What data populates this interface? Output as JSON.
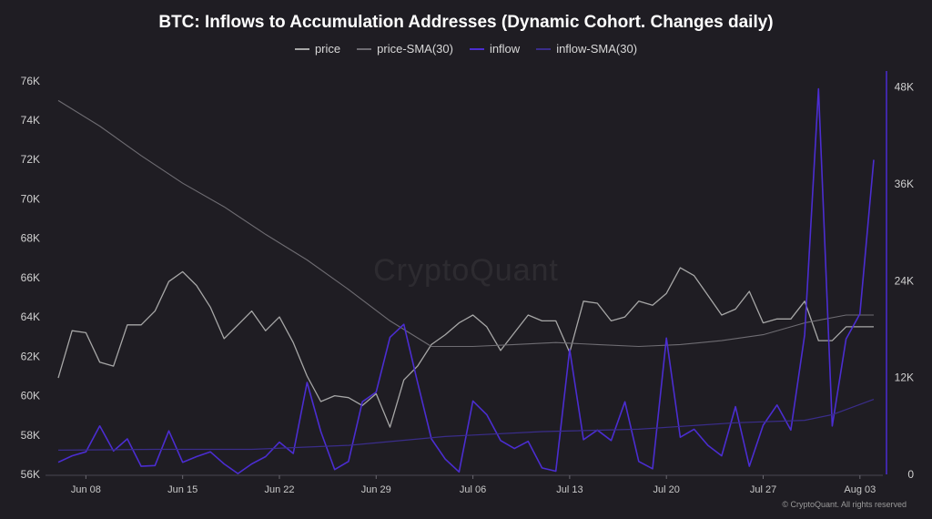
{
  "chart_data": {
    "type": "line",
    "title": "BTC: Inflows to Accumulation Addresses (Dynamic Cohort. Changes daily)",
    "legend_position": "top-center",
    "x_ticks": [
      "Jun 08",
      "Jun 15",
      "Jun 22",
      "Jun 29",
      "Jul 06",
      "Jul 13",
      "Jul 20",
      "Jul 27",
      "Aug 03"
    ],
    "x_range": [
      "2024-06-06",
      "2024-08-04"
    ],
    "y_left": {
      "ticks": [
        56000,
        58000,
        60000,
        62000,
        64000,
        66000,
        68000,
        70000,
        72000,
        74000,
        76000
      ],
      "tick_labels": [
        "56K",
        "58K",
        "60K",
        "62K",
        "64K",
        "66K",
        "68K",
        "70K",
        "72K",
        "74K",
        "76K"
      ],
      "range": [
        56000,
        76500
      ]
    },
    "y_right": {
      "ticks": [
        0,
        12000,
        24000,
        36000,
        48000
      ],
      "tick_labels": [
        "0",
        "12K",
        "24K",
        "36K",
        "48K"
      ],
      "range": [
        0,
        50000
      ]
    },
    "series": [
      {
        "name": "price",
        "axis": "left",
        "color": "#a7a7a7",
        "x": [
          "2024-06-06",
          "2024-06-07",
          "2024-06-08",
          "2024-06-09",
          "2024-06-10",
          "2024-06-11",
          "2024-06-12",
          "2024-06-13",
          "2024-06-14",
          "2024-06-15",
          "2024-06-16",
          "2024-06-17",
          "2024-06-18",
          "2024-06-19",
          "2024-06-20",
          "2024-06-21",
          "2024-06-22",
          "2024-06-23",
          "2024-06-24",
          "2024-06-25",
          "2024-06-26",
          "2024-06-27",
          "2024-06-28",
          "2024-06-29",
          "2024-06-30",
          "2024-07-01",
          "2024-07-02",
          "2024-07-03",
          "2024-07-04",
          "2024-07-05",
          "2024-07-06",
          "2024-07-07",
          "2024-07-08",
          "2024-07-09",
          "2024-07-10",
          "2024-07-11",
          "2024-07-12",
          "2024-07-13",
          "2024-07-14",
          "2024-07-15",
          "2024-07-16",
          "2024-07-17",
          "2024-07-18",
          "2024-07-19",
          "2024-07-20",
          "2024-07-21",
          "2024-07-22",
          "2024-07-23",
          "2024-07-24",
          "2024-07-25",
          "2024-07-26",
          "2024-07-27",
          "2024-07-28",
          "2024-07-29",
          "2024-07-30",
          "2024-07-31",
          "2024-08-01",
          "2024-08-02",
          "2024-08-03",
          "2024-08-04"
        ],
        "values": [
          60900,
          63300,
          63200,
          61700,
          61500,
          63600,
          63600,
          64300,
          65800,
          66300,
          65600,
          64500,
          62900,
          63600,
          64300,
          63300,
          64000,
          62700,
          61000,
          59700,
          60000,
          59900,
          59500,
          60100,
          58400,
          60800,
          61500,
          62600,
          63100,
          63700,
          64100,
          63500,
          62300,
          63200,
          64100,
          63800,
          63800,
          62200,
          64800,
          64700,
          63800,
          64000,
          64800,
          64600,
          65200,
          66500,
          66100,
          65100,
          64100,
          64400,
          65300,
          63700,
          63900,
          63900,
          64800,
          62800,
          62800,
          63500,
          63500,
          63500
        ]
      },
      {
        "name": "price-SMA(30)",
        "axis": "left",
        "color": "#6e6c72",
        "x": [
          "2024-06-06",
          "2024-06-09",
          "2024-06-12",
          "2024-06-15",
          "2024-06-18",
          "2024-06-21",
          "2024-06-24",
          "2024-06-27",
          "2024-06-30",
          "2024-07-03",
          "2024-07-06",
          "2024-07-09",
          "2024-07-12",
          "2024-07-15",
          "2024-07-18",
          "2024-07-21",
          "2024-07-24",
          "2024-07-27",
          "2024-07-30",
          "2024-08-02",
          "2024-08-04"
        ],
        "values": [
          75000,
          73700,
          72200,
          70800,
          69600,
          68200,
          66900,
          65400,
          63800,
          62500,
          62500,
          62600,
          62700,
          62600,
          62500,
          62600,
          62800,
          63100,
          63700,
          64100,
          64100
        ]
      },
      {
        "name": "inflow",
        "axis": "right",
        "color": "#4b2dd1",
        "x": [
          "2024-06-06",
          "2024-06-07",
          "2024-06-08",
          "2024-06-09",
          "2024-06-10",
          "2024-06-11",
          "2024-06-12",
          "2024-06-13",
          "2024-06-14",
          "2024-06-15",
          "2024-06-16",
          "2024-06-17",
          "2024-06-18",
          "2024-06-19",
          "2024-06-20",
          "2024-06-21",
          "2024-06-22",
          "2024-06-23",
          "2024-06-24",
          "2024-06-25",
          "2024-06-26",
          "2024-06-27",
          "2024-06-28",
          "2024-06-29",
          "2024-06-30",
          "2024-07-01",
          "2024-07-02",
          "2024-07-03",
          "2024-07-04",
          "2024-07-05",
          "2024-07-06",
          "2024-07-07",
          "2024-07-08",
          "2024-07-09",
          "2024-07-10",
          "2024-07-11",
          "2024-07-12",
          "2024-07-13",
          "2024-07-14",
          "2024-07-15",
          "2024-07-16",
          "2024-07-17",
          "2024-07-18",
          "2024-07-19",
          "2024-07-20",
          "2024-07-21",
          "2024-07-22",
          "2024-07-23",
          "2024-07-24",
          "2024-07-25",
          "2024-07-26",
          "2024-07-27",
          "2024-07-28",
          "2024-07-29",
          "2024-07-30",
          "2024-07-31",
          "2024-08-01",
          "2024-08-02",
          "2024-08-03",
          "2024-08-04"
        ],
        "values": [
          1500,
          2300,
          2800,
          6000,
          2900,
          4400,
          1000,
          1100,
          5400,
          1500,
          2200,
          2800,
          1300,
          100,
          1300,
          2200,
          4000,
          2600,
          11400,
          5300,
          600,
          1600,
          9000,
          10200,
          17000,
          18600,
          11400,
          4400,
          1900,
          300,
          9100,
          7400,
          4200,
          3200,
          4100,
          800,
          400,
          15500,
          4300,
          5500,
          4200,
          9000,
          1600,
          700,
          16900,
          4600,
          5600,
          3600,
          2300,
          8400,
          1000,
          6100,
          8600,
          5500,
          17300,
          47800,
          6000,
          16800,
          19900,
          39000
        ]
      },
      {
        "name": "inflow-SMA(30)",
        "axis": "right",
        "color": "#3a2d8a",
        "x": [
          "2024-06-06",
          "2024-06-13",
          "2024-06-20",
          "2024-06-27",
          "2024-07-04",
          "2024-07-11",
          "2024-07-18",
          "2024-07-25",
          "2024-07-30",
          "2024-08-01",
          "2024-08-04"
        ],
        "values": [
          3000,
          3100,
          3100,
          3600,
          4700,
          5300,
          5600,
          6400,
          6700,
          7400,
          9300
        ]
      }
    ]
  },
  "copyright": "© CryptoQuant. All rights reserved",
  "watermark": "CryptoQuant"
}
